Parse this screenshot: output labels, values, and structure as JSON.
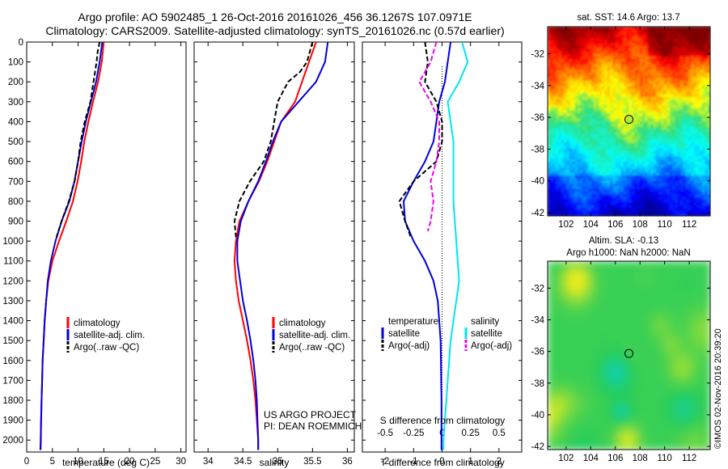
{
  "header": {
    "line1": "Argo profile: AO 5902485_1 26-Oct-2016 20161026_456 36.1267S 107.0971E",
    "line2": "Climatology: CARS2009. Satellite-adjusted climatology: synTS_20161026.nc (0.57d earlier)"
  },
  "colors": {
    "climatology": "#ff0000",
    "satellite": "#0000dd",
    "argo": "#000000",
    "salinity_satellite": "#00e5ee",
    "salinity_argo": "#ee00ee",
    "marker": "#000000"
  },
  "chart_data": [
    {
      "type": "line",
      "panel": "temperature",
      "xlabel": "temperature (deg C)",
      "ylabel": "",
      "xlim": [
        0,
        31
      ],
      "ylim": [
        0,
        2060
      ],
      "y_inverted": true,
      "xticks": [
        0,
        5,
        10,
        15,
        20,
        25,
        30
      ],
      "yticks": [
        0,
        100,
        200,
        300,
        400,
        500,
        600,
        700,
        800,
        900,
        1000,
        1100,
        1200,
        1300,
        1400,
        1500,
        1600,
        1700,
        1800,
        1900,
        2000
      ],
      "legend": [
        "climatology",
        "satellite-adj. clim.",
        "Argo(..raw -QC)"
      ],
      "series": [
        {
          "name": "climatology",
          "color": "#ff0000",
          "dashed": false,
          "points": [
            [
              15.0,
              0
            ],
            [
              14.6,
              100
            ],
            [
              13.9,
              200
            ],
            [
              12.9,
              300
            ],
            [
              12.0,
              400
            ],
            [
              11.2,
              500
            ],
            [
              10.6,
              600
            ],
            [
              9.9,
              700
            ],
            [
              9.0,
              800
            ],
            [
              7.7,
              900
            ],
            [
              6.3,
              1000
            ],
            [
              5.0,
              1100
            ],
            [
              4.2,
              1200
            ],
            [
              3.8,
              1300
            ],
            [
              3.5,
              1400
            ],
            [
              3.3,
              1500
            ],
            [
              3.1,
              1600
            ],
            [
              3.0,
              1700
            ],
            [
              2.9,
              1800
            ],
            [
              2.8,
              1900
            ],
            [
              2.7,
              2000
            ],
            [
              2.65,
              2050
            ]
          ]
        },
        {
          "name": "satellite-adj. clim.",
          "color": "#0000dd",
          "dashed": false,
          "points": [
            [
              14.7,
              0
            ],
            [
              14.2,
              100
            ],
            [
              13.5,
              200
            ],
            [
              12.5,
              300
            ],
            [
              11.5,
              400
            ],
            [
              10.7,
              500
            ],
            [
              10.0,
              600
            ],
            [
              9.3,
              700
            ],
            [
              8.3,
              800
            ],
            [
              6.8,
              900
            ],
            [
              5.6,
              1000
            ],
            [
              4.7,
              1100
            ],
            [
              4.1,
              1200
            ],
            [
              3.8,
              1300
            ],
            [
              3.5,
              1400
            ],
            [
              3.3,
              1500
            ],
            [
              3.1,
              1600
            ],
            [
              3.0,
              1700
            ],
            [
              2.9,
              1800
            ],
            [
              2.8,
              1900
            ],
            [
              2.75,
              2000
            ],
            [
              2.7,
              2050
            ]
          ]
        },
        {
          "name": "Argo(..raw -QC)",
          "color": "#000000",
          "dashed": true,
          "points": [
            [
              14.2,
              0
            ],
            [
              13.8,
              50
            ],
            [
              13.6,
              100
            ],
            [
              13.3,
              150
            ],
            [
              13.0,
              200
            ],
            [
              12.4,
              300
            ],
            [
              11.3,
              400
            ],
            [
              10.5,
              500
            ],
            [
              10.0,
              600
            ],
            [
              9.3,
              700
            ],
            [
              8.2,
              800
            ],
            [
              6.8,
              900
            ],
            [
              5.8,
              980
            ]
          ]
        }
      ]
    },
    {
      "type": "line",
      "panel": "salinity",
      "xlabel": "salinity",
      "ylabel": "",
      "xlim": [
        33.8,
        36.1
      ],
      "ylim": [
        0,
        2060
      ],
      "y_inverted": true,
      "xticks": [
        34,
        34.5,
        35,
        35.5,
        36
      ],
      "legend": [
        "climatology",
        "satellite-adj. clim.",
        "Argo(..raw -QC)"
      ],
      "note_lines": [
        "US ARGO PROJECT",
        "PI: DEAN ROEMMICH"
      ],
      "series": [
        {
          "name": "climatology",
          "color": "#ff0000",
          "dashed": false,
          "points": [
            [
              35.55,
              0
            ],
            [
              35.45,
              100
            ],
            [
              35.35,
              200
            ],
            [
              35.25,
              300
            ],
            [
              35.05,
              400
            ],
            [
              34.95,
              500
            ],
            [
              34.85,
              600
            ],
            [
              34.73,
              700
            ],
            [
              34.58,
              800
            ],
            [
              34.45,
              900
            ],
            [
              34.4,
              1000
            ],
            [
              34.38,
              1100
            ],
            [
              34.4,
              1200
            ],
            [
              34.44,
              1300
            ],
            [
              34.5,
              1400
            ],
            [
              34.56,
              1500
            ],
            [
              34.61,
              1600
            ],
            [
              34.65,
              1700
            ],
            [
              34.68,
              1800
            ],
            [
              34.7,
              1900
            ],
            [
              34.72,
              2000
            ],
            [
              34.72,
              2050
            ]
          ]
        },
        {
          "name": "satellite-adj. clim.",
          "color": "#0000dd",
          "dashed": false,
          "points": [
            [
              35.72,
              0
            ],
            [
              35.68,
              100
            ],
            [
              35.55,
              200
            ],
            [
              35.3,
              300
            ],
            [
              35.05,
              400
            ],
            [
              34.93,
              500
            ],
            [
              34.83,
              600
            ],
            [
              34.72,
              700
            ],
            [
              34.58,
              800
            ],
            [
              34.47,
              900
            ],
            [
              34.42,
              1000
            ],
            [
              34.42,
              1100
            ],
            [
              34.46,
              1200
            ],
            [
              34.5,
              1300
            ],
            [
              34.56,
              1400
            ],
            [
              34.61,
              1500
            ],
            [
              34.65,
              1600
            ],
            [
              34.68,
              1700
            ],
            [
              34.7,
              1800
            ],
            [
              34.71,
              1900
            ],
            [
              34.72,
              2000
            ],
            [
              34.72,
              2050
            ]
          ]
        },
        {
          "name": "Argo(..raw -QC)",
          "color": "#000000",
          "dashed": true,
          "points": [
            [
              35.5,
              0
            ],
            [
              35.42,
              100
            ],
            [
              35.32,
              150
            ],
            [
              35.15,
              200
            ],
            [
              35.0,
              300
            ],
            [
              34.95,
              400
            ],
            [
              34.9,
              500
            ],
            [
              34.8,
              600
            ],
            [
              34.6,
              700
            ],
            [
              34.45,
              800
            ],
            [
              34.38,
              900
            ],
            [
              34.4,
              980
            ]
          ]
        }
      ]
    },
    {
      "type": "line",
      "panel": "difference",
      "xlabel": "T difference from climatology",
      "ylabel": "",
      "top_xlabel": "S difference from climatology",
      "xlim": [
        -2.8,
        2.8
      ],
      "ylim": [
        0,
        2060
      ],
      "y_inverted": true,
      "xticks": [
        -2,
        -1,
        0,
        1,
        2
      ],
      "top_ticks": [
        "-0.5",
        "-0.25",
        "0",
        "0.25",
        "0.5"
      ],
      "top_tick_positions": [
        -2,
        -1,
        0,
        1,
        2
      ],
      "legend_temperature": {
        "title": "temperature",
        "items": [
          "satellite",
          "Argo(-adj)"
        ]
      },
      "legend_salinity": {
        "title": "salinity",
        "items": [
          "satellite",
          "Argo(-adj)"
        ]
      },
      "series": [
        {
          "name": "satellite",
          "group": "temperature",
          "color": "#0000dd",
          "dashed": false,
          "points": [
            [
              0.3,
              0
            ],
            [
              0.2,
              100
            ],
            [
              0.1,
              200
            ],
            [
              -0.1,
              300
            ],
            [
              -0.2,
              400
            ],
            [
              -0.3,
              500
            ],
            [
              -0.6,
              600
            ],
            [
              -1.0,
              700
            ],
            [
              -1.35,
              800
            ],
            [
              -1.3,
              900
            ],
            [
              -1.0,
              1000
            ],
            [
              -0.6,
              1100
            ],
            [
              -0.3,
              1200
            ],
            [
              -0.15,
              1300
            ],
            [
              -0.1,
              1400
            ],
            [
              -0.05,
              1500
            ],
            [
              -0.04,
              1600
            ],
            [
              -0.03,
              1700
            ],
            [
              -0.02,
              1800
            ],
            [
              -0.02,
              1900
            ],
            [
              -0.02,
              2000
            ],
            [
              -0.02,
              2050
            ]
          ]
        },
        {
          "name": "Argo(-adj)",
          "group": "temperature",
          "color": "#000000",
          "dashed": true,
          "points": [
            [
              -0.6,
              0
            ],
            [
              -0.5,
              100
            ],
            [
              -0.6,
              200
            ],
            [
              -0.2,
              300
            ],
            [
              0.0,
              400
            ],
            [
              0.0,
              500
            ],
            [
              -0.2,
              600
            ],
            [
              -1.0,
              700
            ],
            [
              -1.5,
              800
            ],
            [
              -1.3,
              900
            ],
            [
              -1.1,
              980
            ]
          ]
        },
        {
          "name": "satellite",
          "group": "salinity",
          "color": "#00e5ee",
          "dashed": false,
          "points": [
            [
              0.7,
              0
            ],
            [
              0.9,
              100
            ],
            [
              0.6,
              200
            ],
            [
              0.2,
              300
            ],
            [
              0.3,
              400
            ],
            [
              0.4,
              500
            ],
            [
              0.4,
              600
            ],
            [
              0.4,
              700
            ],
            [
              0.4,
              800
            ],
            [
              0.45,
              900
            ],
            [
              0.5,
              1000
            ],
            [
              0.55,
              1100
            ],
            [
              0.6,
              1200
            ],
            [
              0.5,
              1300
            ],
            [
              0.4,
              1400
            ],
            [
              0.3,
              1500
            ],
            [
              0.25,
              1600
            ],
            [
              0.2,
              1700
            ],
            [
              0.15,
              1800
            ],
            [
              0.1,
              1900
            ],
            [
              0.05,
              2000
            ],
            [
              0.05,
              2050
            ]
          ]
        },
        {
          "name": "Argo(-adj)",
          "group": "salinity",
          "color": "#ee00ee",
          "dashed": true,
          "points": [
            [
              -0.2,
              0
            ],
            [
              -0.4,
              100
            ],
            [
              -0.8,
              200
            ],
            [
              -0.4,
              300
            ],
            [
              -0.1,
              400
            ],
            [
              -0.1,
              500
            ],
            [
              -0.2,
              600
            ],
            [
              -0.4,
              700
            ],
            [
              -0.3,
              800
            ],
            [
              -0.4,
              900
            ],
            [
              -0.5,
              950
            ]
          ]
        }
      ]
    },
    {
      "type": "heatmap",
      "panel": "sst_map",
      "title": "sat. SST: 14.6 Argo: 13.7",
      "xlim": [
        100.5,
        113.7
      ],
      "ylim": [
        -42.2,
        -30.3
      ],
      "xticks": [
        102,
        104,
        106,
        108,
        110,
        112
      ],
      "yticks": [
        -32,
        -34,
        -36,
        -38,
        -40,
        -42
      ],
      "marker": [
        107.1,
        -36.13
      ]
    },
    {
      "type": "heatmap",
      "panel": "sla_map",
      "title_line1": "Altim. SLA: -0.13",
      "title_line2": "Argo h1000: NaN h2000: NaN",
      "xlim": [
        100.5,
        113.7
      ],
      "ylim": [
        -42.2,
        -30.3
      ],
      "xticks": [
        102,
        104,
        106,
        108,
        110,
        112
      ],
      "yticks": [
        -32,
        -34,
        -36,
        -38,
        -40,
        -42
      ],
      "marker": [
        107.1,
        -36.13
      ]
    }
  ],
  "credit": "©IMOS 02-Nov-2016 20:39:20"
}
